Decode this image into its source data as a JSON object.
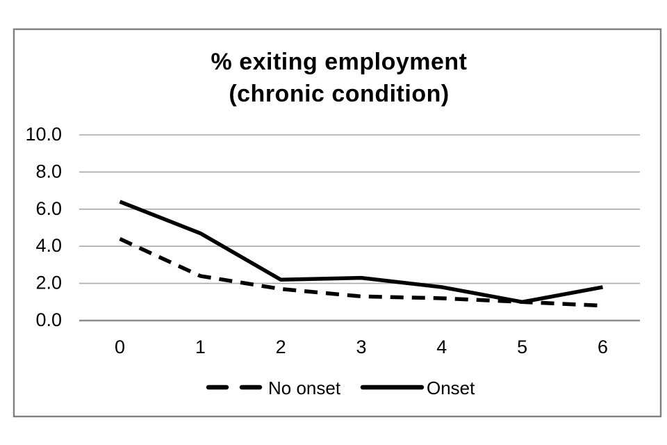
{
  "figure": {
    "background": "#ffffff",
    "border_color": "#7f7f7f"
  },
  "chart_data": {
    "type": "line",
    "title": "% exiting employment",
    "subtitle": "(chronic condition)",
    "xlabel": "",
    "ylabel": "",
    "categories": [
      "0",
      "1",
      "2",
      "3",
      "4",
      "5",
      "6"
    ],
    "series": [
      {
        "name": "No onset",
        "style": "dashed",
        "color": "#000000",
        "values": [
          4.4,
          2.4,
          1.7,
          1.3,
          1.2,
          1.0,
          0.8
        ]
      },
      {
        "name": "Onset",
        "style": "solid",
        "color": "#000000",
        "values": [
          6.4,
          4.7,
          2.2,
          2.3,
          1.8,
          1.0,
          1.8
        ]
      }
    ],
    "ylim": [
      0,
      10
    ],
    "yticks": [
      0,
      2,
      4,
      6,
      8,
      10
    ],
    "ytick_labels": [
      "0.0",
      "2.0",
      "4.0",
      "6.0",
      "8.0",
      "10.0"
    ],
    "grid": true,
    "gridline_color": "#a8a8a8",
    "axis_line_color": "#8c8c8c",
    "legend_position": "bottom"
  }
}
